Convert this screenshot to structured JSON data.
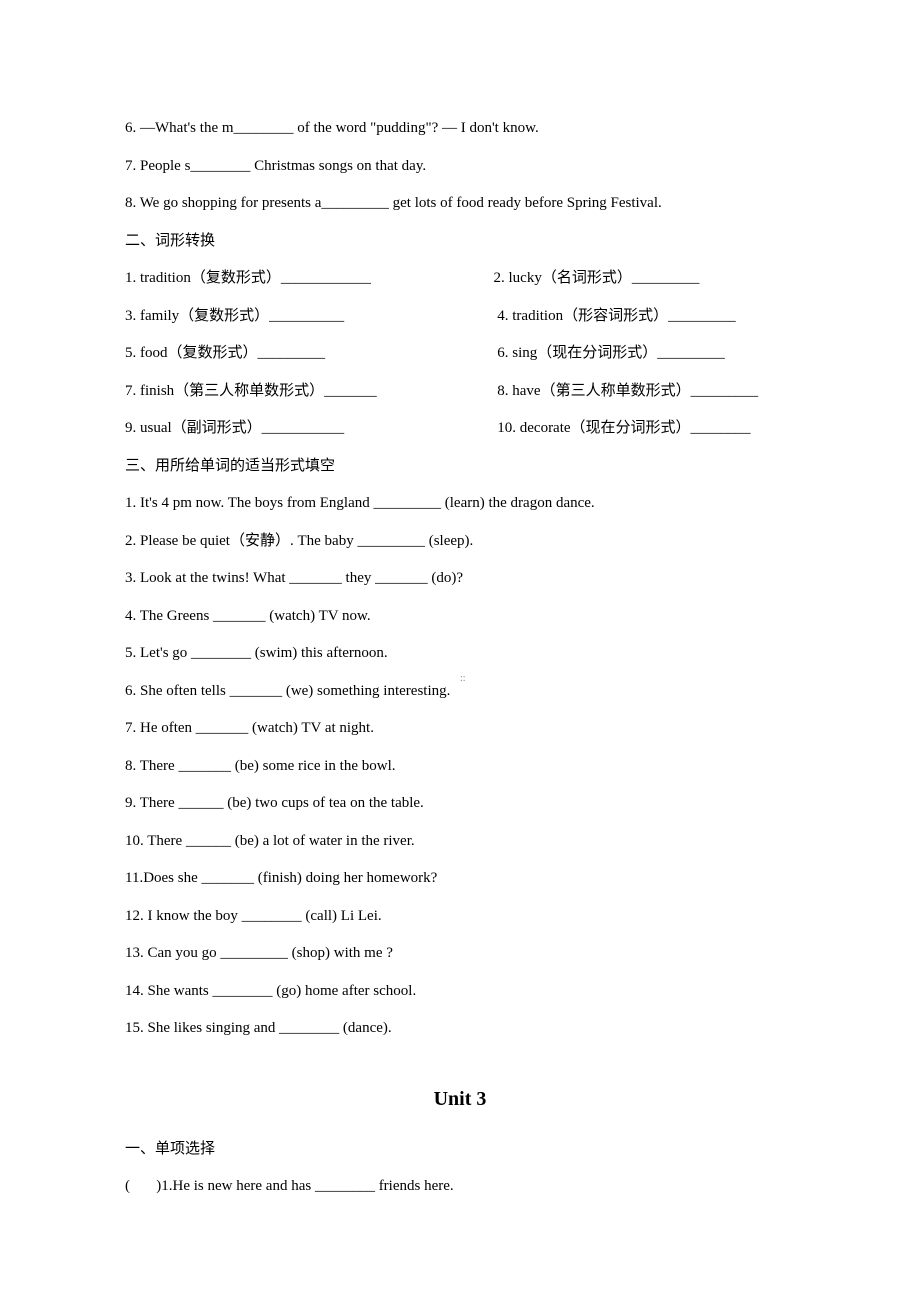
{
  "q6": "6. —What's the m________ of the word \"pudding\"? — I don't know.",
  "q7": "7. People s________ Christmas songs on that day.",
  "q8": "8. We go shopping for presents a_________ get lots of food ready before Spring Festival.",
  "sec2_title": "二、词形转换",
  "sec2": {
    "r1l": "1. tradition（复数形式）____________",
    "r1r": "2. lucky（名词形式）_________",
    "r2l": "3. family（复数形式）__________",
    "r2r": " 4. tradition（形容词形式）_________",
    "r3l": "5. food（复数形式）_________",
    "r3r": " 6. sing（现在分词形式）_________",
    "r4l": "7. finish（第三人称单数形式）_______",
    "r4r": " 8. have（第三人称单数形式）_________",
    "r5l": "9. usual（副词形式）___________",
    "r5r": " 10. decorate（现在分词形式）________"
  },
  "sec3_title": "三、用所给单词的适当形式填空",
  "sec3": {
    "q1": "1. It's 4 pm now. The boys from England _________ (learn) the dragon dance.",
    "q2": "2. Please be quiet（安静）. The baby _________ (sleep).",
    "q3": "3. Look at the twins! What _______ they _______ (do)?",
    "q4": "4. The Greens _______ (watch) TV now.",
    "q5": "5. Let's go ________ (swim) this afternoon.",
    "q6": "6. She often tells _______ (we) something interesting.",
    "q7": "7. He often _______ (watch) TV at night.",
    "q8": "8. There _______ (be) some rice in the bowl.",
    "q9": "9. There ______ (be) two cups of tea on the table.",
    "q10": "10. There ______ (be) a lot of water in the river.",
    "q11": "11.Does she _______ (finish) doing her homework?",
    "q12": "12. I know the boy ________ (call) Li Lei.",
    "q13": "13. Can you go _________ (shop) with me ?",
    "q14": "14. She wants ________ (go) home after school.",
    "q15": "15. She likes singing and ________ (dance)."
  },
  "unit3_title": "Unit 3",
  "unit3_sec1_title": "一、单项选择",
  "unit3_sec1_q1": "(       )1.He is new here and has ________ friends here."
}
